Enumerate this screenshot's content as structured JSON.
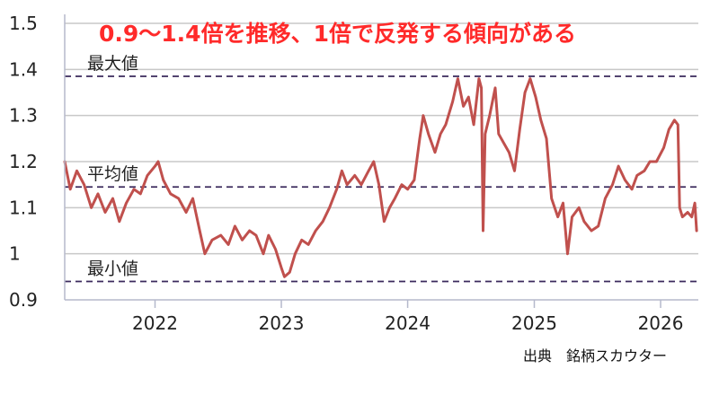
{
  "chart_data": {
    "type": "line",
    "title": "0.9〜1.4倍を推移、1倍で反発する傾向がある",
    "source": "出典　銘柄スカウター",
    "ylim": [
      0.9,
      1.5
    ],
    "y_ticks": [
      {
        "value": 1.5,
        "label": "1.5"
      },
      {
        "value": 1.4,
        "label": "1.4"
      },
      {
        "value": 1.3,
        "label": "1.3"
      },
      {
        "value": 1.2,
        "label": "1.2"
      },
      {
        "value": 1.1,
        "label": "1.1"
      },
      {
        "value": 1.0,
        "label": "1"
      },
      {
        "value": 0.9,
        "label": "0.9"
      }
    ],
    "xlim": [
      "2021-04-15",
      "2026-04-20"
    ],
    "x_ticks": [
      {
        "value": "2022-01-01",
        "label": "2022"
      },
      {
        "value": "2023-01-01",
        "label": "2023"
      },
      {
        "value": "2024-01-01",
        "label": "2024"
      },
      {
        "value": "2025-01-01",
        "label": "2025"
      },
      {
        "value": "2026-01-01",
        "label": "2026"
      }
    ],
    "grid": true,
    "reference_lines": [
      {
        "label": "最大値",
        "value": 1.385
      },
      {
        "label": "平均値",
        "value": 1.145
      },
      {
        "label": "最小値",
        "value": 0.94
      }
    ],
    "series": [
      {
        "points": [
          [
            "2021-04-15",
            1.2
          ],
          [
            "2021-05-01",
            1.14
          ],
          [
            "2021-05-20",
            1.18
          ],
          [
            "2021-06-10",
            1.15
          ],
          [
            "2021-07-01",
            1.1
          ],
          [
            "2021-07-20",
            1.13
          ],
          [
            "2021-08-10",
            1.09
          ],
          [
            "2021-09-01",
            1.12
          ],
          [
            "2021-09-20",
            1.07
          ],
          [
            "2021-10-10",
            1.11
          ],
          [
            "2021-11-01",
            1.14
          ],
          [
            "2021-11-20",
            1.13
          ],
          [
            "2021-12-10",
            1.17
          ],
          [
            "2022-01-01",
            1.19
          ],
          [
            "2022-01-10",
            1.2
          ],
          [
            "2022-01-25",
            1.16
          ],
          [
            "2022-02-15",
            1.13
          ],
          [
            "2022-03-10",
            1.12
          ],
          [
            "2022-04-01",
            1.09
          ],
          [
            "2022-04-20",
            1.12
          ],
          [
            "2022-05-10",
            1.05
          ],
          [
            "2022-05-25",
            1.0
          ],
          [
            "2022-06-15",
            1.03
          ],
          [
            "2022-07-10",
            1.04
          ],
          [
            "2022-08-01",
            1.02
          ],
          [
            "2022-08-20",
            1.06
          ],
          [
            "2022-09-10",
            1.03
          ],
          [
            "2022-10-01",
            1.05
          ],
          [
            "2022-10-20",
            1.04
          ],
          [
            "2022-11-10",
            1.0
          ],
          [
            "2022-11-25",
            1.04
          ],
          [
            "2022-12-15",
            1.01
          ],
          [
            "2023-01-01",
            0.97
          ],
          [
            "2023-01-10",
            0.95
          ],
          [
            "2023-01-25",
            0.96
          ],
          [
            "2023-02-10",
            1.0
          ],
          [
            "2023-03-01",
            1.03
          ],
          [
            "2023-03-20",
            1.02
          ],
          [
            "2023-04-10",
            1.05
          ],
          [
            "2023-05-01",
            1.07
          ],
          [
            "2023-05-20",
            1.1
          ],
          [
            "2023-06-10",
            1.14
          ],
          [
            "2023-06-25",
            1.18
          ],
          [
            "2023-07-10",
            1.15
          ],
          [
            "2023-08-01",
            1.17
          ],
          [
            "2023-08-20",
            1.15
          ],
          [
            "2023-09-10",
            1.18
          ],
          [
            "2023-09-25",
            1.2
          ],
          [
            "2023-10-10",
            1.15
          ],
          [
            "2023-10-25",
            1.07
          ],
          [
            "2023-11-10",
            1.1
          ],
          [
            "2023-11-25",
            1.12
          ],
          [
            "2023-12-15",
            1.15
          ],
          [
            "2024-01-01",
            1.14
          ],
          [
            "2024-01-20",
            1.16
          ],
          [
            "2024-02-05",
            1.25
          ],
          [
            "2024-02-15",
            1.3
          ],
          [
            "2024-03-01",
            1.26
          ],
          [
            "2024-03-20",
            1.22
          ],
          [
            "2024-04-05",
            1.26
          ],
          [
            "2024-04-20",
            1.28
          ],
          [
            "2024-05-10",
            1.33
          ],
          [
            "2024-05-25",
            1.38
          ],
          [
            "2024-06-10",
            1.32
          ],
          [
            "2024-06-25",
            1.34
          ],
          [
            "2024-07-10",
            1.28
          ],
          [
            "2024-07-25",
            1.38
          ],
          [
            "2024-08-01",
            1.36
          ],
          [
            "2024-08-06",
            1.05
          ],
          [
            "2024-08-12",
            1.26
          ],
          [
            "2024-08-25",
            1.3
          ],
          [
            "2024-09-10",
            1.36
          ],
          [
            "2024-09-20",
            1.26
          ],
          [
            "2024-10-05",
            1.24
          ],
          [
            "2024-10-20",
            1.22
          ],
          [
            "2024-11-05",
            1.18
          ],
          [
            "2024-11-20",
            1.27
          ],
          [
            "2024-12-05",
            1.35
          ],
          [
            "2024-12-20",
            1.38
          ],
          [
            "2025-01-05",
            1.34
          ],
          [
            "2025-01-20",
            1.29
          ],
          [
            "2025-02-05",
            1.25
          ],
          [
            "2025-02-20",
            1.12
          ],
          [
            "2025-03-10",
            1.08
          ],
          [
            "2025-03-25",
            1.11
          ],
          [
            "2025-04-07",
            1.0
          ],
          [
            "2025-04-20",
            1.08
          ],
          [
            "2025-05-10",
            1.1
          ],
          [
            "2025-05-25",
            1.07
          ],
          [
            "2025-06-15",
            1.05
          ],
          [
            "2025-07-05",
            1.06
          ],
          [
            "2025-07-25",
            1.12
          ],
          [
            "2025-08-15",
            1.15
          ],
          [
            "2025-09-01",
            1.19
          ],
          [
            "2025-09-20",
            1.16
          ],
          [
            "2025-10-10",
            1.14
          ],
          [
            "2025-10-25",
            1.17
          ],
          [
            "2025-11-15",
            1.18
          ],
          [
            "2025-12-01",
            1.2
          ],
          [
            "2025-12-20",
            1.2
          ],
          [
            "2026-01-10",
            1.23
          ],
          [
            "2026-01-25",
            1.27
          ],
          [
            "2026-02-10",
            1.29
          ],
          [
            "2026-02-20",
            1.28
          ],
          [
            "2026-02-25",
            1.1
          ],
          [
            "2026-03-05",
            1.08
          ],
          [
            "2026-03-20",
            1.09
          ],
          [
            "2026-04-01",
            1.08
          ],
          [
            "2026-04-10",
            1.11
          ],
          [
            "2026-04-15",
            1.05
          ]
        ]
      }
    ],
    "colors": {
      "line": "#c0504d",
      "reference": "#3b2a5c",
      "grid": "#c8c8c8",
      "axis": "#b5b9cc",
      "title": "#ff2a2a"
    }
  }
}
